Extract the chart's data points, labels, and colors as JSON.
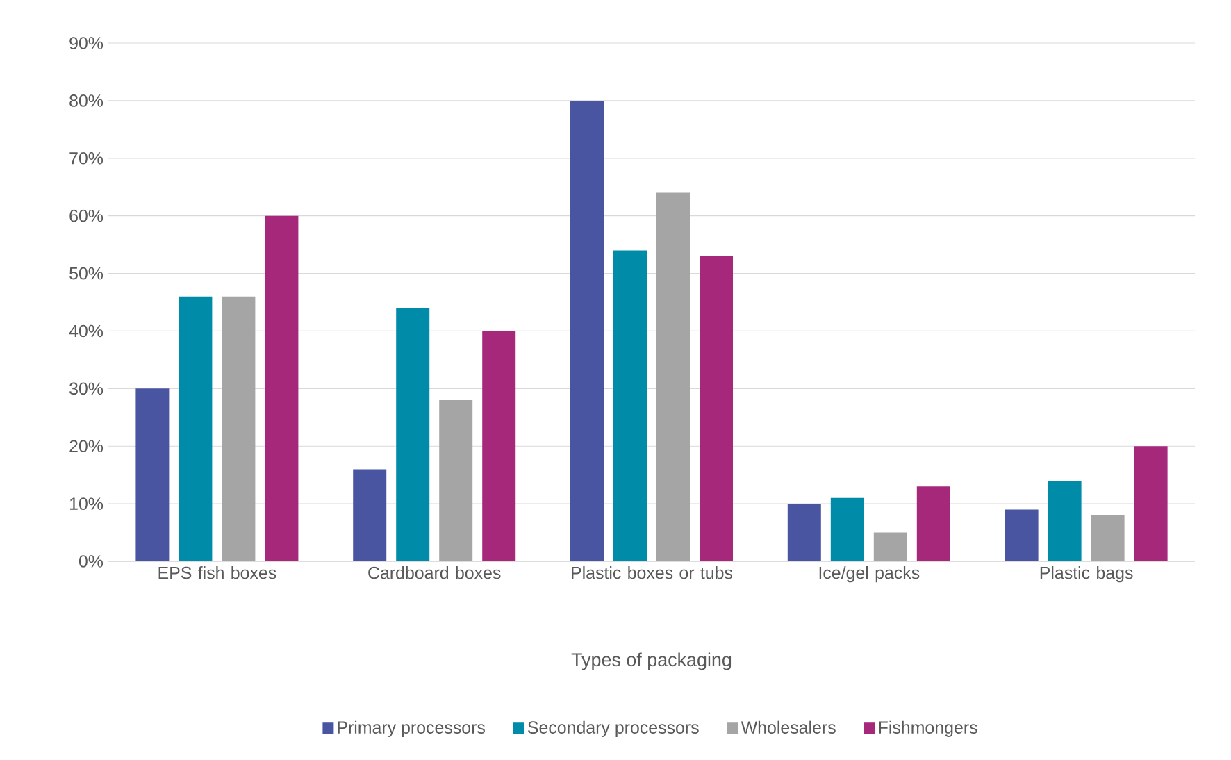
{
  "chart_data": {
    "type": "bar",
    "xlabel": "Types of packaging",
    "categories": [
      "EPS fish boxes",
      "Cardboard boxes",
      "Plastic boxes or tubs",
      "Ice/gel packs",
      "Plastic bags"
    ],
    "series": [
      {
        "name": "Primary processors",
        "color": "#4a55a2",
        "values": [
          30,
          16,
          80,
          10,
          9
        ]
      },
      {
        "name": "Secondary processors",
        "color": "#008ca8",
        "values": [
          46,
          44,
          54,
          11,
          14
        ]
      },
      {
        "name": "Wholesalers",
        "color": "#a5a5a5",
        "values": [
          46,
          28,
          64,
          5,
          8
        ]
      },
      {
        "name": "Fishmongers",
        "color": "#a6287a",
        "values": [
          60,
          40,
          53,
          13,
          20
        ]
      }
    ],
    "ylim": [
      0,
      90
    ],
    "yticks": [
      {
        "value": 0,
        "label": "0%"
      },
      {
        "value": 10,
        "label": "10%"
      },
      {
        "value": 20,
        "label": "20%"
      },
      {
        "value": 30,
        "label": "30%"
      },
      {
        "value": 40,
        "label": "40%"
      },
      {
        "value": 50,
        "label": "50%"
      },
      {
        "value": 60,
        "label": "60%"
      },
      {
        "value": 70,
        "label": "70%"
      },
      {
        "value": 80,
        "label": "80%"
      },
      {
        "value": 90,
        "label": "90%"
      }
    ],
    "grid": "y",
    "legend": "bottom"
  }
}
